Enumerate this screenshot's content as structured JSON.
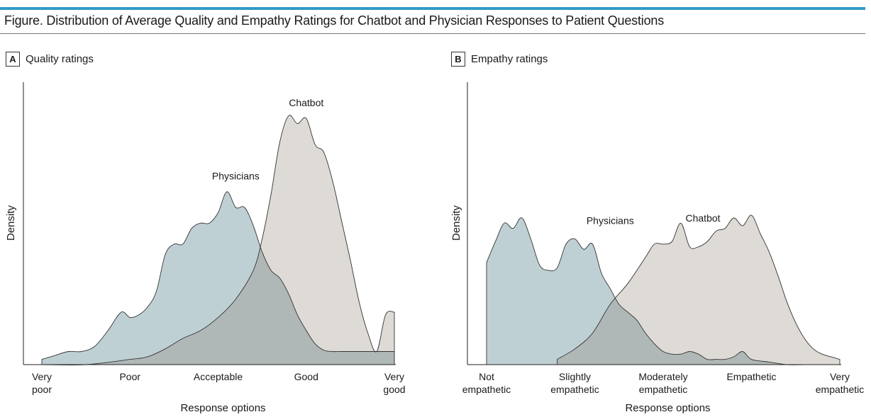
{
  "figure": {
    "title": "Figure. Distribution of Average Quality and Empathy Ratings for Chatbot and Physician Responses to Patient Questions"
  },
  "colors": {
    "accent_bar": "#2f9bc8",
    "physicians_fill": "#bfd0d4",
    "chatbot_fill": "#dedbd7",
    "overlap_fill": "#b0b8b7",
    "stroke": "#333333"
  },
  "chart_data": [
    {
      "panel": "A",
      "title": "Quality ratings",
      "type": "area",
      "xlabel": "Response options",
      "ylabel": "Density",
      "x_ticks": [
        {
          "value": 1,
          "lines": [
            "Very",
            "poor"
          ]
        },
        {
          "value": 2,
          "lines": [
            "Poor"
          ]
        },
        {
          "value": 3,
          "lines": [
            "Acceptable"
          ]
        },
        {
          "value": 4,
          "lines": [
            "Good"
          ]
        },
        {
          "value": 5,
          "lines": [
            "Very",
            "good"
          ]
        }
      ],
      "xlim": [
        0.8,
        5.0
      ],
      "ylim": [
        0,
        1.0
      ],
      "grid": false,
      "series": [
        {
          "name": "Physicians",
          "label_at": [
            3.2,
            0.72
          ],
          "x": [
            1.0,
            1.15,
            1.3,
            1.45,
            1.6,
            1.75,
            1.9,
            2.0,
            2.1,
            2.2,
            2.3,
            2.4,
            2.5,
            2.6,
            2.7,
            2.8,
            2.9,
            3.0,
            3.1,
            3.2,
            3.3,
            3.4,
            3.5,
            3.6,
            3.7,
            3.8,
            3.9,
            4.0,
            4.1,
            4.2,
            4.3,
            4.4,
            4.5,
            4.6,
            4.7,
            4.8,
            5.0
          ],
          "y": [
            0.02,
            0.035,
            0.05,
            0.05,
            0.07,
            0.13,
            0.2,
            0.18,
            0.19,
            0.22,
            0.28,
            0.42,
            0.46,
            0.46,
            0.52,
            0.54,
            0.54,
            0.58,
            0.66,
            0.6,
            0.6,
            0.53,
            0.43,
            0.36,
            0.33,
            0.27,
            0.19,
            0.13,
            0.08,
            0.055,
            0.05,
            0.05,
            0.05,
            0.05,
            0.05,
            0.05,
            0.05
          ]
        },
        {
          "name": "Chatbot",
          "label_at": [
            4.0,
            1.0
          ],
          "x": [
            1.0,
            1.5,
            2.0,
            2.2,
            2.4,
            2.6,
            2.8,
            3.0,
            3.2,
            3.4,
            3.5,
            3.6,
            3.7,
            3.8,
            3.9,
            4.0,
            4.1,
            4.2,
            4.3,
            4.4,
            4.5,
            4.6,
            4.7,
            4.8,
            4.9,
            5.0
          ],
          "y": [
            0.0,
            0.0,
            0.02,
            0.03,
            0.06,
            0.1,
            0.13,
            0.18,
            0.25,
            0.36,
            0.48,
            0.65,
            0.85,
            0.95,
            0.92,
            0.94,
            0.84,
            0.81,
            0.7,
            0.55,
            0.4,
            0.24,
            0.12,
            0.05,
            0.19,
            0.2
          ]
        }
      ]
    },
    {
      "panel": "B",
      "title": "Empathy ratings",
      "type": "area",
      "xlabel": "Response options",
      "ylabel": "Density",
      "x_ticks": [
        {
          "value": 1,
          "lines": [
            "Not",
            "empathetic"
          ]
        },
        {
          "value": 2,
          "lines": [
            "Slightly",
            "empathetic"
          ]
        },
        {
          "value": 3,
          "lines": [
            "Moderately",
            "empathetic"
          ]
        },
        {
          "value": 4,
          "lines": [
            "Empathetic"
          ]
        },
        {
          "value": 5,
          "lines": [
            "Very",
            "empathetic"
          ]
        }
      ],
      "xlim": [
        0.8,
        5.0
      ],
      "ylim": [
        0,
        1.0
      ],
      "grid": false,
      "series": [
        {
          "name": "Physicians",
          "label_at": [
            2.4,
            0.55
          ],
          "x": [
            1.0,
            1.1,
            1.2,
            1.3,
            1.4,
            1.5,
            1.6,
            1.7,
            1.8,
            1.9,
            2.0,
            2.1,
            2.2,
            2.3,
            2.4,
            2.5,
            2.6,
            2.7,
            2.8,
            2.9,
            3.0,
            3.1,
            3.2,
            3.3,
            3.4,
            3.5,
            3.6,
            3.7,
            3.8,
            3.9,
            4.0,
            4.2,
            4.4,
            4.6,
            4.8,
            5.0
          ],
          "y": [
            0.39,
            0.47,
            0.54,
            0.52,
            0.56,
            0.48,
            0.38,
            0.36,
            0.37,
            0.46,
            0.48,
            0.44,
            0.46,
            0.35,
            0.29,
            0.23,
            0.2,
            0.17,
            0.12,
            0.08,
            0.05,
            0.04,
            0.04,
            0.05,
            0.04,
            0.02,
            0.02,
            0.02,
            0.03,
            0.05,
            0.02,
            0.01,
            0.0,
            0.0,
            0.0,
            0.0
          ]
        },
        {
          "name": "Chatbot",
          "label_at": [
            3.45,
            0.56
          ],
          "x": [
            1.8,
            2.0,
            2.2,
            2.4,
            2.6,
            2.8,
            2.9,
            3.0,
            3.1,
            3.2,
            3.3,
            3.4,
            3.5,
            3.6,
            3.7,
            3.8,
            3.9,
            4.0,
            4.1,
            4.2,
            4.3,
            4.4,
            4.5,
            4.6,
            4.7,
            4.8,
            4.9,
            5.0
          ],
          "y": [
            0.02,
            0.06,
            0.12,
            0.23,
            0.31,
            0.41,
            0.46,
            0.46,
            0.47,
            0.54,
            0.45,
            0.45,
            0.47,
            0.51,
            0.52,
            0.56,
            0.53,
            0.57,
            0.5,
            0.43,
            0.34,
            0.24,
            0.16,
            0.1,
            0.06,
            0.04,
            0.03,
            0.02
          ]
        }
      ]
    }
  ]
}
